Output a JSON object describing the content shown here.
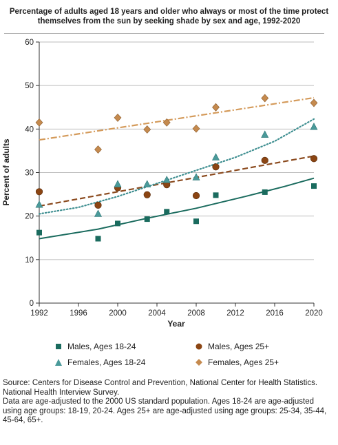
{
  "chart_data": {
    "type": "scatter",
    "title": "Percentage of adults aged 18 years and older who always or most of the time protect themselves from the sun by seeking shade by sex and age, 1992-2020",
    "xlabel": "Year",
    "ylabel": "Percent of adults",
    "xlim": [
      1992,
      2020
    ],
    "ylim": [
      0,
      60
    ],
    "xticks": [
      1992,
      1996,
      2000,
      2004,
      2008,
      2012,
      2016,
      2020
    ],
    "yticks": [
      0,
      10,
      20,
      30,
      40,
      50,
      60
    ],
    "grid": true,
    "legend_position": "bottom",
    "series": [
      {
        "name": "Males, Ages 18-24",
        "marker": "square",
        "color": "#1a6b5e",
        "trend_style": "solid",
        "trend_color": "#1a6b5e",
        "x": [
          1992,
          1998,
          2000,
          2003,
          2005,
          2008,
          2010,
          2015,
          2020
        ],
        "values": [
          16.2,
          14.8,
          18.3,
          19.3,
          21.0,
          18.8,
          24.8,
          25.5,
          26.9
        ],
        "trend": [
          [
            1992,
            14.8
          ],
          [
            1998,
            17.0
          ],
          [
            2003,
            19.5
          ],
          [
            2008,
            21.8
          ],
          [
            2013,
            24.5
          ],
          [
            2017,
            26.8
          ],
          [
            2020,
            28.7
          ]
        ]
      },
      {
        "name": "Males, Ages 25+",
        "marker": "circle",
        "color": "#8b4513",
        "trend_style": "dashed",
        "trend_color": "#8b4a1e",
        "x": [
          1992,
          1998,
          2000,
          2003,
          2005,
          2008,
          2010,
          2015,
          2020
        ],
        "values": [
          25.6,
          22.5,
          26.5,
          24.9,
          27.2,
          24.7,
          31.3,
          32.8,
          33.2
        ],
        "trend": [
          [
            1992,
            22.3
          ],
          [
            2020,
            33.8
          ]
        ]
      },
      {
        "name": "Females, Ages 18-24",
        "marker": "triangle",
        "color": "#4a9a9a",
        "trend_style": "dotted",
        "trend_color": "#3f8f91",
        "x": [
          1992,
          1998,
          2000,
          2003,
          2005,
          2008,
          2010,
          2015,
          2020
        ],
        "values": [
          22.6,
          20.5,
          27.3,
          27.3,
          28.3,
          28.9,
          33.5,
          38.7,
          40.5
        ],
        "trend": [
          [
            1992,
            20.5
          ],
          [
            1996,
            22.0
          ],
          [
            2000,
            24.5
          ],
          [
            2004,
            27.5
          ],
          [
            2008,
            30.5
          ],
          [
            2012,
            33.5
          ],
          [
            2016,
            37.2
          ],
          [
            2020,
            42.3
          ]
        ]
      },
      {
        "name": "Females, Ages 25+",
        "marker": "diamond",
        "color": "#c58a4e",
        "trend_style": "dashdot",
        "trend_color": "#d49a5a",
        "x": [
          1992,
          1998,
          2000,
          2003,
          2005,
          2008,
          2010,
          2015,
          2020
        ],
        "values": [
          41.5,
          35.3,
          42.6,
          39.9,
          41.5,
          40.1,
          45.0,
          47.1,
          46.0
        ],
        "trend": [
          [
            1992,
            37.5
          ],
          [
            2020,
            47.2
          ]
        ]
      }
    ]
  },
  "legend": [
    {
      "label": "Males, Ages 18-24"
    },
    {
      "label": "Males, Ages 25+"
    },
    {
      "label": "Females, Ages 18-24"
    },
    {
      "label": "Females, Ages 25+"
    }
  ],
  "source": {
    "line1": "Source: Centers for Disease Control and Prevention, National Center for Health Statistics. National Health Interview Survey.",
    "line2": "Data are age-adjusted to the 2000 US standard population. Ages 18-24 are age-adjusted using age groups: 18-19, 20-24. Ages 25+ are age-adjusted using age groups: 25-34, 35-44, 45-64, 65+."
  }
}
